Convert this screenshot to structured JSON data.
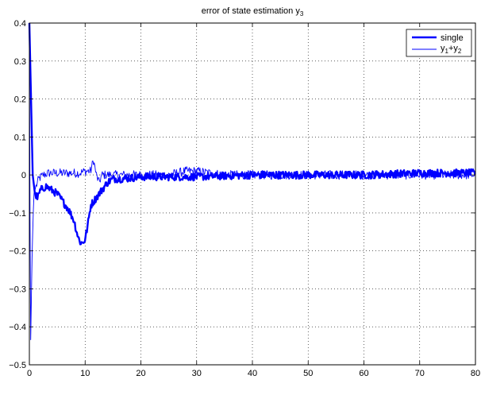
{
  "chart_data": {
    "type": "line",
    "title": "error of state estimation y",
    "title_subscript": "3",
    "xlabel": "",
    "ylabel": "",
    "xlim": [
      0,
      80
    ],
    "ylim": [
      -0.5,
      0.4
    ],
    "xticks": [
      0,
      10,
      20,
      30,
      40,
      50,
      60,
      70,
      80
    ],
    "yticks": [
      -0.5,
      -0.4,
      -0.3,
      -0.2,
      -0.1,
      0,
      0.1,
      0.2,
      0.3,
      0.4
    ],
    "xtick_labels": [
      "0",
      "10",
      "20",
      "30",
      "40",
      "50",
      "60",
      "70",
      "80"
    ],
    "ytick_labels": [
      "−0.5",
      "−0.4",
      "−0.3",
      "−0.2",
      "−0.1",
      "0",
      "0.1",
      "0.2",
      "0.3",
      "0.4"
    ],
    "grid": true,
    "legend_position": "top-right",
    "series": [
      {
        "name": "single",
        "color": "#0000ff",
        "line_width": "thick",
        "x": [
          0,
          0.3,
          0.6,
          1,
          1.5,
          2,
          3,
          4,
          5,
          6,
          7,
          8,
          8.5,
          9,
          9.5,
          10,
          10.5,
          11,
          12,
          13,
          14,
          15,
          17,
          20,
          25,
          30,
          40,
          50,
          60,
          70,
          80
        ],
        "y": [
          0.4,
          0.2,
          0.0,
          -0.05,
          -0.06,
          -0.04,
          -0.03,
          -0.04,
          -0.05,
          -0.07,
          -0.09,
          -0.12,
          -0.15,
          -0.175,
          -0.18,
          -0.17,
          -0.13,
          -0.08,
          -0.06,
          -0.04,
          -0.02,
          -0.01,
          -0.01,
          -0.005,
          -0.005,
          -0.005,
          0.0,
          0.0,
          0.0,
          0.005,
          0.005
        ],
        "noise_amplitude": 0.01
      },
      {
        "name": "y1+y2",
        "label_main": "y",
        "label_sub1": "1",
        "label_plus": "+y",
        "label_sub2": "2",
        "color": "#0000ff",
        "line_width": "thin",
        "x": [
          0,
          0.2,
          0.5,
          0.8,
          1.2,
          1.7,
          2.5,
          3.5,
          5,
          7,
          9,
          10,
          11,
          11.5,
          12,
          12.5,
          13,
          14,
          15,
          20,
          25,
          28,
          30,
          35,
          40,
          50,
          60,
          70,
          80
        ],
        "y": [
          0.4,
          -0.47,
          -0.2,
          -0.05,
          -0.03,
          -0.01,
          0.0,
          0.005,
          0.005,
          0.005,
          0.005,
          0.01,
          0.01,
          0.04,
          0.0,
          -0.02,
          0.0,
          0.0,
          0.0,
          0.0,
          0.0,
          0.01,
          0.01,
          0.0,
          0.0,
          0.0,
          0.0,
          0.0,
          0.0
        ],
        "noise_amplitude": 0.012
      }
    ]
  }
}
